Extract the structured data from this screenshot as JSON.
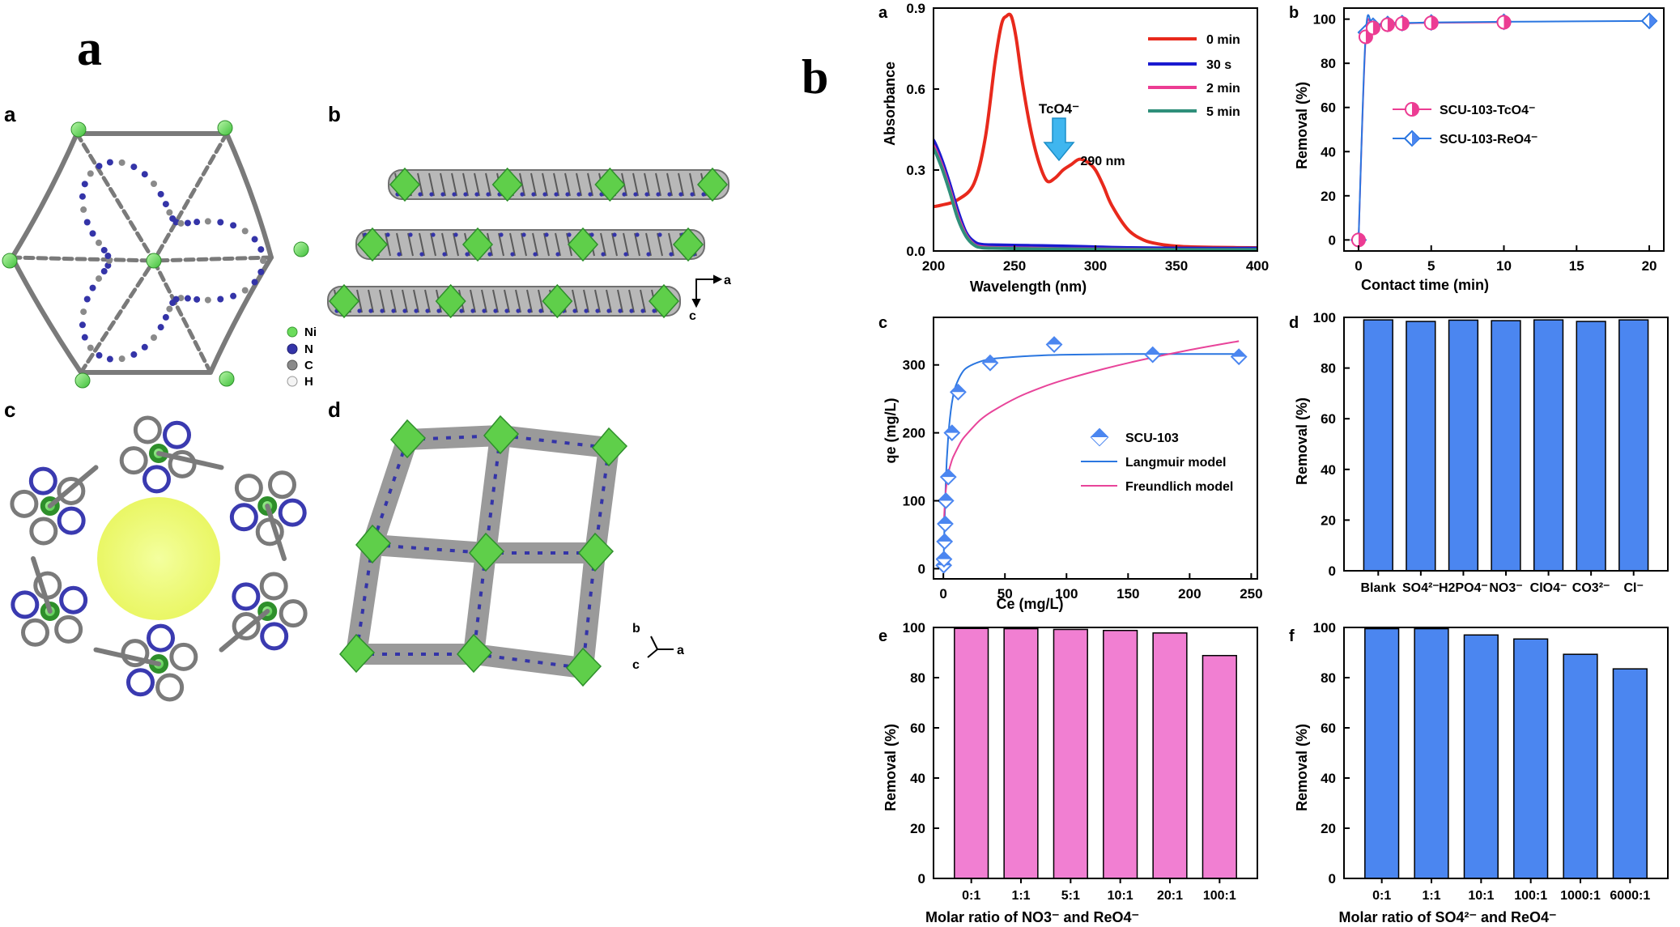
{
  "left": {
    "big_label": "a",
    "panels": [
      "a",
      "b",
      "c",
      "d"
    ],
    "legend": [
      {
        "symbol": "Ni",
        "color": "#6bdc5c"
      },
      {
        "symbol": "N",
        "color": "#3434a8"
      },
      {
        "symbol": "C",
        "color": "#8a8a8a"
      },
      {
        "symbol": "H",
        "color": "#eeeeee"
      }
    ],
    "axes_b": {
      "a": "a",
      "c": "c"
    },
    "axes_d": {
      "b": "b",
      "a": "a",
      "c": "c"
    }
  },
  "right": {
    "big_label": "b"
  },
  "colors": {
    "red": "#e8291c",
    "blue": "#1a1ad0",
    "pink": "#ec3c93",
    "teal": "#2f8f7a",
    "bar_blue": "#4b86f0",
    "bar_pink": "#f17fd2",
    "lang_blue": "#2a76e0",
    "freund_pink": "#e8449a",
    "diamond": "#4b86f0"
  },
  "chart_data": [
    {
      "panel": "a",
      "type": "line",
      "xlabel": "Wavelength (nm)",
      "ylabel": "Absorbance",
      "xlim": [
        200,
        400
      ],
      "ylim": [
        0,
        0.9
      ],
      "xticks": [
        "200",
        "250",
        "300",
        "350",
        "400"
      ],
      "yticks": [
        "0.0",
        "0.3",
        "0.6",
        "0.9"
      ],
      "annotation": {
        "label": "TcO4⁻",
        "peak": "290 nm"
      },
      "series": [
        {
          "name": "0 min",
          "color": "#e8291c",
          "x": [
            195,
            205,
            215,
            225,
            232,
            238,
            242,
            245,
            248,
            251,
            255,
            260,
            265,
            270,
            275,
            280,
            285,
            290,
            295,
            300,
            305,
            310,
            320,
            330,
            340,
            350,
            360,
            380,
            400
          ],
          "y": [
            0.16,
            0.17,
            0.19,
            0.25,
            0.42,
            0.7,
            0.84,
            0.87,
            0.87,
            0.79,
            0.62,
            0.45,
            0.33,
            0.26,
            0.27,
            0.3,
            0.32,
            0.34,
            0.33,
            0.3,
            0.24,
            0.17,
            0.08,
            0.04,
            0.025,
            0.018,
            0.015,
            0.013,
            0.012
          ]
        },
        {
          "name": "30 s",
          "color": "#1a1ad0",
          "x": [
            195,
            200,
            205,
            210,
            215,
            220,
            225,
            230,
            240,
            260,
            280,
            300,
            320,
            350,
            400
          ],
          "y": [
            0.44,
            0.41,
            0.34,
            0.25,
            0.15,
            0.07,
            0.035,
            0.024,
            0.022,
            0.02,
            0.018,
            0.015,
            0.012,
            0.01,
            0.01
          ]
        },
        {
          "name": "2 min",
          "color": "#ec3c93",
          "x": [
            195,
            200,
            205,
            210,
            215,
            220,
            225,
            230,
            240,
            260,
            280,
            300,
            320,
            350,
            400
          ],
          "y": [
            0.42,
            0.39,
            0.32,
            0.23,
            0.13,
            0.06,
            0.025,
            0.015,
            0.012,
            0.01,
            0.008,
            0.007,
            0.006,
            0.005,
            0.005
          ]
        },
        {
          "name": "5 min",
          "color": "#2f8f7a",
          "x": [
            195,
            200,
            205,
            210,
            215,
            220,
            225,
            230,
            240,
            260,
            280,
            300,
            320,
            350,
            400
          ],
          "y": [
            0.41,
            0.38,
            0.31,
            0.22,
            0.12,
            0.055,
            0.022,
            0.012,
            0.01,
            0.008,
            0.007,
            0.006,
            0.005,
            0.005,
            0.005
          ]
        }
      ]
    },
    {
      "panel": "b",
      "type": "line",
      "xlabel": "Contact time (min)",
      "ylabel": "Removal (%)",
      "xlim": [
        -1,
        21
      ],
      "ylim": [
        -5,
        105
      ],
      "xticks": [
        "0",
        "5",
        "10",
        "15",
        "20"
      ],
      "yticks": [
        "0",
        "20",
        "40",
        "60",
        "80",
        "100"
      ],
      "series": [
        {
          "name": "SCU-103-TcO4⁻",
          "color": "#ec3c93",
          "x": [
            0,
            0.5,
            1,
            2,
            3,
            5,
            10
          ],
          "y": [
            0,
            92,
            96,
            97.5,
            98,
            98.3,
            98.6
          ]
        },
        {
          "name": "SCU-103-ReO4⁻",
          "color": "#2a76e0",
          "x": [
            0,
            0.5,
            1,
            2,
            3,
            5,
            10,
            20
          ],
          "y": [
            0,
            94,
            97,
            97.8,
            98.2,
            98.5,
            98.8,
            99.2
          ]
        }
      ]
    },
    {
      "panel": "c",
      "type": "scatter",
      "xlabel": "Ce (mg/L)",
      "ylabel": "qe (mg/L)",
      "xlim": [
        -8,
        255
      ],
      "ylim": [
        -15,
        370
      ],
      "xticks": [
        "0",
        "50",
        "100",
        "150",
        "200",
        "250"
      ],
      "yticks": [
        "0",
        "100",
        "200",
        "300"
      ],
      "series": [
        {
          "name": "SCU-103",
          "color": "#4b86f0",
          "x": [
            0.3,
            0.5,
            1,
            1.5,
            2,
            4,
            7,
            12,
            38,
            90,
            170,
            240
          ],
          "y": [
            5,
            14,
            40,
            66,
            100,
            135,
            200,
            260,
            303,
            330,
            315,
            312
          ]
        },
        {
          "name": "Langmuir model",
          "color": "#2a76e0",
          "x": [
            0,
            2,
            4,
            6,
            8,
            10,
            15,
            20,
            30,
            40,
            60,
            80,
            100,
            150,
            200,
            240
          ],
          "y": [
            0,
            130,
            195,
            232,
            255,
            269,
            288,
            297,
            305,
            309,
            312,
            314,
            315,
            316,
            316,
            316
          ]
        },
        {
          "name": "Freundlich model",
          "color": "#e8449a",
          "x": [
            0.5,
            1,
            2,
            4,
            7,
            10,
            15,
            20,
            30,
            40,
            60,
            80,
            100,
            130,
            160,
            200,
            240
          ],
          "y": [
            70,
            90,
            115,
            140,
            160,
            172,
            189,
            200,
            219,
            232,
            252,
            267,
            279,
            294,
            307,
            322,
            335
          ]
        }
      ]
    },
    {
      "panel": "d",
      "type": "bar",
      "ylabel": "Removal (%)",
      "ylim": [
        0,
        100
      ],
      "yticks": [
        "0",
        "20",
        "40",
        "60",
        "80",
        "100"
      ],
      "categories": [
        "Blank",
        "SO4²⁻",
        "H2PO4⁻",
        "NO3⁻",
        "ClO4⁻",
        "CO3²⁻",
        "Cl⁻"
      ],
      "values": [
        99,
        98.4,
        98.9,
        98.7,
        99,
        98.4,
        99
      ],
      "color": "#4b86f0"
    },
    {
      "panel": "e",
      "type": "bar",
      "xlabel": "Molar ratio of NO3⁻ and ReO4⁻",
      "ylabel": "Removal (%)",
      "ylim": [
        0,
        100
      ],
      "yticks": [
        "0",
        "20",
        "40",
        "60",
        "80",
        "100"
      ],
      "categories": [
        "0:1",
        "1:1",
        "5:1",
        "10:1",
        "20:1",
        "100:1"
      ],
      "values": [
        99.6,
        99.5,
        99.2,
        98.8,
        97.8,
        88.8
      ],
      "color": "#f17fd2"
    },
    {
      "panel": "f",
      "type": "bar",
      "xlabel": "Molar ratio of SO4²⁻ and ReO4⁻",
      "ylabel": "Removal (%)",
      "ylim": [
        0,
        100
      ],
      "yticks": [
        "0",
        "20",
        "40",
        "60",
        "80",
        "100"
      ],
      "categories": [
        "0:1",
        "1:1",
        "10:1",
        "100:1",
        "1000:1",
        "6000:1"
      ],
      "values": [
        99.5,
        99.5,
        97,
        95.4,
        89.3,
        83.5
      ],
      "color": "#4b86f0"
    }
  ]
}
